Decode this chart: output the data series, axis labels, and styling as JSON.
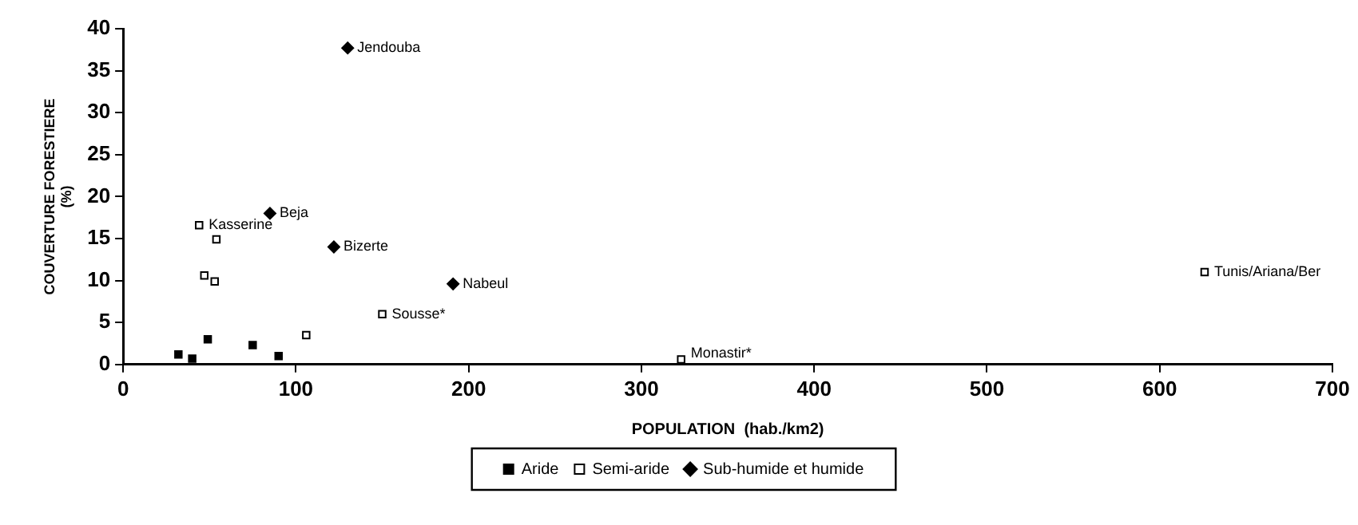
{
  "chart_data": {
    "type": "scatter",
    "xlabel": "POPULATION  (hab./km2)",
    "ylabel": "COUVERTURE FORESTIERE (%)",
    "xlim": [
      0,
      700
    ],
    "xticks": [
      0,
      100,
      200,
      300,
      400,
      500,
      600,
      700
    ],
    "ylim": [
      0,
      40
    ],
    "yticks": [
      0,
      5,
      10,
      15,
      20,
      25,
      30,
      35,
      40
    ],
    "grid": false,
    "legend": "bottom",
    "series": [
      {
        "name": "Aride",
        "color": "#000000",
        "marker": "square",
        "x": [
          32,
          40,
          49,
          75,
          90
        ],
        "values": [
          1.2,
          0.7,
          3.0,
          2.3,
          1.0
        ]
      },
      {
        "name": "Semi-aride",
        "color": "#000000",
        "marker": "square-open",
        "x": [
          44,
          54,
          47,
          53,
          106,
          150,
          323,
          626
        ],
        "values": [
          16.6,
          14.9,
          10.6,
          9.9,
          3.5,
          6.0,
          0.6,
          11.0
        ]
      },
      {
        "name": "Sub-humide et humide",
        "color": "#000000",
        "marker": "diamond",
        "x": [
          130,
          85,
          122,
          191
        ],
        "values": [
          37.7,
          18.0,
          14.0,
          9.6
        ]
      }
    ],
    "annotations": [
      {
        "text": "Jendouba",
        "x": 130,
        "y": 37.7
      },
      {
        "text": "Beja",
        "x": 85,
        "y": 18.0
      },
      {
        "text": "Kasserine",
        "x": 44,
        "y": 16.6
      },
      {
        "text": "Bizerte",
        "x": 122,
        "y": 14.0
      },
      {
        "text": "Nabeul",
        "x": 191,
        "y": 9.6
      },
      {
        "text": "Sousse*",
        "x": 150,
        "y": 6.0
      },
      {
        "text": "Monastir*",
        "x": 323,
        "y": 0.6
      },
      {
        "text": "Tunis/Ariana/Ber",
        "x": 626,
        "y": 11.0
      }
    ]
  }
}
